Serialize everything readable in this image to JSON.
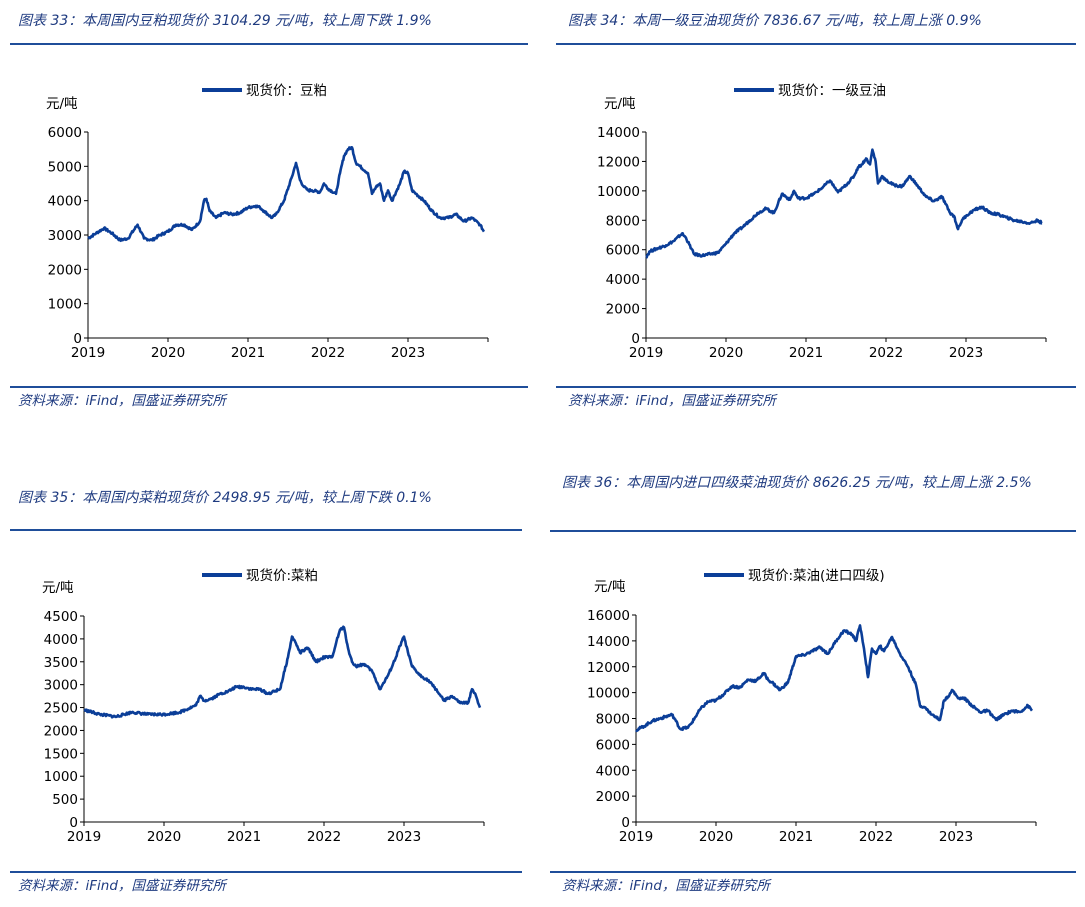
{
  "panels": [
    {
      "id": "p33",
      "title": "图表 33：本周国内豆粕现货价 3104.29 元/吨，较上周下跌 1.9%",
      "source": "资料来源：iFind，国盛证券研究所"
    },
    {
      "id": "p34",
      "title": "图表 34：本周一级豆油现货价 7836.67 元/吨，较上周上涨 0.9%",
      "source": "资料来源：iFind，国盛证券研究所"
    },
    {
      "id": "p35",
      "title": "图表 35：本周国内菜粕现货价 2498.95 元/吨，较上周下跌 0.1%",
      "source": "资料来源：iFind，国盛证券研究所"
    },
    {
      "id": "p36",
      "title": "图表 36：本周国内进口四级菜油现货价 8626.25 元/吨，较上周上涨 2.5%",
      "source": "资料来源：iFind，国盛证券研究所"
    }
  ],
  "colors": {
    "series": "#0b3e98",
    "title": "#1f3b80",
    "rule": "#1f4e9a",
    "axis": "#000000"
  },
  "chart_data": [
    {
      "type": "line",
      "ylabel": "元/吨",
      "ylim": [
        0,
        6000
      ],
      "yticks": [
        "0",
        "1000",
        "2000",
        "3000",
        "4000",
        "5000",
        "6000"
      ],
      "xticks": [
        "2019",
        "2020",
        "2021",
        "2022",
        "2023"
      ],
      "xlim": [
        2019,
        2024
      ],
      "legend": "top-center",
      "series": [
        {
          "name": "现货价：豆粕",
          "x": [
            2019.0,
            2019.1,
            2019.2,
            2019.3,
            2019.4,
            2019.5,
            2019.62,
            2019.7,
            2019.8,
            2019.9,
            2020.0,
            2020.1,
            2020.2,
            2020.3,
            2020.4,
            2020.45,
            2020.48,
            2020.52,
            2020.6,
            2020.7,
            2020.8,
            2020.9,
            2021.0,
            2021.1,
            2021.15,
            2021.2,
            2021.3,
            2021.35,
            2021.45,
            2021.55,
            2021.6,
            2021.65,
            2021.7,
            2021.75,
            2021.8,
            2021.9,
            2021.95,
            2022.0,
            2022.1,
            2022.15,
            2022.2,
            2022.25,
            2022.3,
            2022.35,
            2022.4,
            2022.5,
            2022.55,
            2022.6,
            2022.65,
            2022.7,
            2022.75,
            2022.8,
            2022.9,
            2022.95,
            2023.0,
            2023.05,
            2023.1,
            2023.2,
            2023.3,
            2023.4,
            2023.5,
            2023.6,
            2023.7,
            2023.8,
            2023.9,
            2023.95
          ],
          "y": [
            2900,
            3050,
            3200,
            3050,
            2850,
            2900,
            3300,
            2900,
            2850,
            3000,
            3100,
            3300,
            3300,
            3150,
            3400,
            4000,
            4050,
            3700,
            3500,
            3650,
            3600,
            3650,
            3800,
            3850,
            3800,
            3700,
            3500,
            3600,
            4000,
            4700,
            5100,
            4600,
            4400,
            4300,
            4300,
            4250,
            4500,
            4350,
            4200,
            4800,
            5300,
            5500,
            5550,
            5100,
            5000,
            4800,
            4200,
            4400,
            4500,
            4000,
            4300,
            4000,
            4500,
            4850,
            4800,
            4300,
            4200,
            4000,
            3700,
            3500,
            3500,
            3600,
            3400,
            3500,
            3300,
            3100
          ]
        }
      ]
    },
    {
      "type": "line",
      "ylabel": "元/吨",
      "ylim": [
        0,
        14000
      ],
      "yticks": [
        "0",
        "2000",
        "4000",
        "6000",
        "8000",
        "10000",
        "12000",
        "14000"
      ],
      "xticks": [
        "2019",
        "2020",
        "2021",
        "2022",
        "2023"
      ],
      "xlim": [
        2019,
        2024
      ],
      "legend": "top-center",
      "series": [
        {
          "name": "现货价：一级豆油",
          "x": [
            2019.0,
            2019.05,
            2019.15,
            2019.25,
            2019.35,
            2019.45,
            2019.5,
            2019.6,
            2019.7,
            2019.8,
            2019.9,
            2020.0,
            2020.1,
            2020.2,
            2020.3,
            2020.4,
            2020.5,
            2020.6,
            2020.7,
            2020.8,
            2020.85,
            2020.9,
            2021.0,
            2021.1,
            2021.2,
            2021.3,
            2021.4,
            2021.5,
            2021.6,
            2021.65,
            2021.7,
            2021.75,
            2021.8,
            2021.83,
            2021.87,
            2021.9,
            2021.95,
            2022.0,
            2022.1,
            2022.2,
            2022.3,
            2022.4,
            2022.5,
            2022.6,
            2022.7,
            2022.8,
            2022.85,
            2022.9,
            2022.95,
            2023.0,
            2023.1,
            2023.2,
            2023.3,
            2023.4,
            2023.5,
            2023.6,
            2023.7,
            2023.8,
            2023.9,
            2023.95
          ],
          "y": [
            5500,
            5900,
            6100,
            6300,
            6600,
            7100,
            6800,
            5700,
            5600,
            5700,
            5800,
            6400,
            7100,
            7500,
            8000,
            8500,
            8800,
            8500,
            9800,
            9400,
            10000,
            9500,
            9500,
            9800,
            10200,
            10700,
            9900,
            10400,
            11000,
            11600,
            11800,
            12200,
            11800,
            12800,
            12000,
            10500,
            11000,
            10700,
            10400,
            10300,
            11000,
            10300,
            9600,
            9300,
            9600,
            8500,
            8300,
            7400,
            8000,
            8300,
            8700,
            8900,
            8500,
            8400,
            8200,
            8000,
            7900,
            7800,
            8000,
            7800
          ]
        }
      ]
    },
    {
      "type": "line",
      "ylabel": "元/吨",
      "ylim": [
        0,
        4500
      ],
      "yticks": [
        "0",
        "500",
        "1000",
        "1500",
        "2000",
        "2500",
        "3000",
        "3500",
        "4000",
        "4500"
      ],
      "xticks": [
        "2019",
        "2020",
        "2021",
        "2022",
        "2023"
      ],
      "xlim": [
        2019,
        2024
      ],
      "legend": "top-center",
      "series": [
        {
          "name": "现货价:菜粕",
          "x": [
            2019.0,
            2019.2,
            2019.4,
            2019.6,
            2019.8,
            2020.0,
            2020.2,
            2020.4,
            2020.45,
            2020.5,
            2020.6,
            2020.7,
            2020.8,
            2020.9,
            2021.0,
            2021.1,
            2021.2,
            2021.3,
            2021.45,
            2021.55,
            2021.6,
            2021.65,
            2021.7,
            2021.8,
            2021.9,
            2022.0,
            2022.1,
            2022.15,
            2022.2,
            2022.25,
            2022.3,
            2022.35,
            2022.4,
            2022.5,
            2022.6,
            2022.7,
            2022.8,
            2022.9,
            2022.95,
            2023.0,
            2023.05,
            2023.1,
            2023.2,
            2023.3,
            2023.4,
            2023.5,
            2023.6,
            2023.7,
            2023.8,
            2023.85,
            2023.9,
            2023.95
          ],
          "y": [
            2450,
            2350,
            2300,
            2400,
            2350,
            2350,
            2400,
            2550,
            2750,
            2650,
            2700,
            2800,
            2850,
            2950,
            2950,
            2900,
            2900,
            2800,
            2900,
            3600,
            4050,
            3900,
            3700,
            3800,
            3500,
            3600,
            3600,
            3900,
            4200,
            4250,
            3800,
            3500,
            3400,
            3450,
            3300,
            2900,
            3200,
            3600,
            3850,
            4050,
            3700,
            3400,
            3200,
            3100,
            2900,
            2650,
            2750,
            2600,
            2600,
            2900,
            2750,
            2500
          ]
        }
      ]
    },
    {
      "type": "line",
      "ylabel": "元/吨",
      "ylim": [
        0,
        16000
      ],
      "yticks": [
        "0",
        "2000",
        "4000",
        "6000",
        "8000",
        "10000",
        "12000",
        "14000",
        "16000"
      ],
      "xticks": [
        "2019",
        "2020",
        "2021",
        "2022",
        "2023"
      ],
      "xlim": [
        2019,
        2024
      ],
      "legend": "top-center",
      "series": [
        {
          "name": "现货价:菜油(进口四级)",
          "x": [
            2019.0,
            2019.1,
            2019.2,
            2019.3,
            2019.45,
            2019.5,
            2019.55,
            2019.65,
            2019.7,
            2019.8,
            2019.9,
            2020.0,
            2020.1,
            2020.2,
            2020.3,
            2020.4,
            2020.5,
            2020.6,
            2020.65,
            2020.7,
            2020.8,
            2020.9,
            2021.0,
            2021.1,
            2021.2,
            2021.3,
            2021.4,
            2021.5,
            2021.6,
            2021.7,
            2021.75,
            2021.8,
            2021.85,
            2021.9,
            2021.95,
            2022.0,
            2022.05,
            2022.1,
            2022.2,
            2022.3,
            2022.4,
            2022.5,
            2022.55,
            2022.6,
            2022.7,
            2022.8,
            2022.85,
            2022.9,
            2022.95,
            2023.0,
            2023.05,
            2023.1,
            2023.2,
            2023.3,
            2023.4,
            2023.5,
            2023.6,
            2023.7,
            2023.8,
            2023.9,
            2023.95
          ],
          "y": [
            7100,
            7400,
            7800,
            8000,
            8300,
            7800,
            7200,
            7300,
            7700,
            8700,
            9300,
            9400,
            9900,
            10500,
            10400,
            11000,
            10900,
            11500,
            11000,
            10800,
            10200,
            10800,
            12800,
            12900,
            13200,
            13500,
            13000,
            14000,
            14800,
            14500,
            14000,
            15200,
            13400,
            11200,
            13400,
            13000,
            13600,
            13200,
            14300,
            13000,
            12000,
            10600,
            9000,
            8900,
            8300,
            7900,
            9400,
            9700,
            10200,
            9800,
            9500,
            9600,
            9000,
            8500,
            8600,
            7900,
            8300,
            8600,
            8500,
            9000,
            8600
          ]
        }
      ]
    }
  ]
}
